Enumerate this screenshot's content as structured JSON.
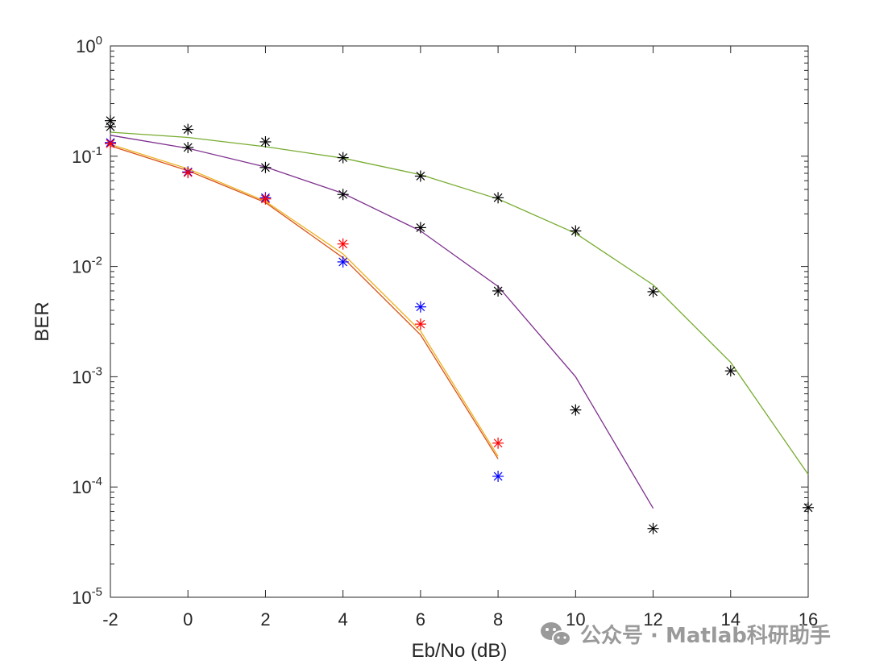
{
  "chart_data": {
    "type": "line",
    "title": "",
    "xlabel": "Eb/No (dB)",
    "ylabel": "BER",
    "xlim": [
      -2,
      16
    ],
    "ylim": [
      1e-05,
      1
    ],
    "yscale": "log",
    "grid": false,
    "xticks": [
      -2,
      0,
      2,
      4,
      6,
      8,
      10,
      12,
      14,
      16
    ],
    "yticks": [
      {
        "value": 1,
        "base": "10",
        "exp": "0"
      },
      {
        "value": 0.1,
        "base": "10",
        "exp": "-1"
      },
      {
        "value": 0.01,
        "base": "10",
        "exp": "-2"
      },
      {
        "value": 0.001,
        "base": "10",
        "exp": "-3"
      },
      {
        "value": 0.0001,
        "base": "10",
        "exp": "-4"
      },
      {
        "value": 1e-05,
        "base": "10",
        "exp": "-5"
      }
    ],
    "series": [
      {
        "style": "line",
        "color": "#77ac30",
        "x": [
          -2,
          0,
          2,
          4,
          6,
          8,
          10,
          12,
          14,
          16
        ],
        "y": [
          0.165,
          0.148,
          0.122,
          0.096,
          0.068,
          0.041,
          0.02,
          0.0068,
          0.00135,
          0.00013
        ]
      },
      {
        "style": "line",
        "color": "#7e2f8e",
        "x": [
          -2,
          0,
          2,
          4,
          6,
          8,
          10,
          12
        ],
        "y": [
          0.155,
          0.118,
          0.08,
          0.046,
          0.021,
          0.0066,
          0.001,
          6.4e-05
        ]
      },
      {
        "style": "line",
        "color": "#edb120",
        "x": [
          -2,
          0,
          2,
          4,
          6,
          8
        ],
        "y": [
          0.128,
          0.077,
          0.039,
          0.013,
          0.0026,
          0.00019
        ]
      },
      {
        "style": "line",
        "color": "#d95319",
        "x": [
          -2,
          0,
          2,
          4,
          6,
          8
        ],
        "y": [
          0.124,
          0.074,
          0.038,
          0.012,
          0.0024,
          0.00018
        ]
      },
      {
        "style": "markers",
        "color": "#000000",
        "x": [
          -2,
          0,
          2,
          4,
          6,
          8,
          10,
          12,
          14,
          16
        ],
        "y": [
          0.21,
          0.175,
          0.135,
          0.097,
          0.066,
          0.042,
          0.021,
          0.0059,
          0.00113,
          6.5e-05
        ]
      },
      {
        "style": "markers",
        "color": "#000000",
        "x": [
          -2,
          0,
          2,
          4,
          6,
          8,
          10,
          12
        ],
        "y": [
          0.185,
          0.12,
          0.079,
          0.045,
          0.0225,
          0.006,
          0.0005,
          4.2e-05
        ]
      },
      {
        "style": "markers",
        "color": "#0000ff",
        "x": [
          -2,
          0,
          2,
          4,
          6,
          8
        ],
        "y": [
          0.133,
          0.072,
          0.042,
          0.011,
          0.0043,
          0.000125
        ]
      },
      {
        "style": "markers",
        "color": "#ff0000",
        "x": [
          -2,
          0,
          2,
          4,
          6,
          8
        ],
        "y": [
          0.13,
          0.071,
          0.041,
          0.016,
          0.003,
          0.00025
        ]
      }
    ]
  },
  "watermark": {
    "text": "公众号 · Matlab科研助手",
    "icon": "wechat-icon"
  },
  "colors": {
    "axis": "#262626",
    "watermark": "#9a9a9a"
  }
}
